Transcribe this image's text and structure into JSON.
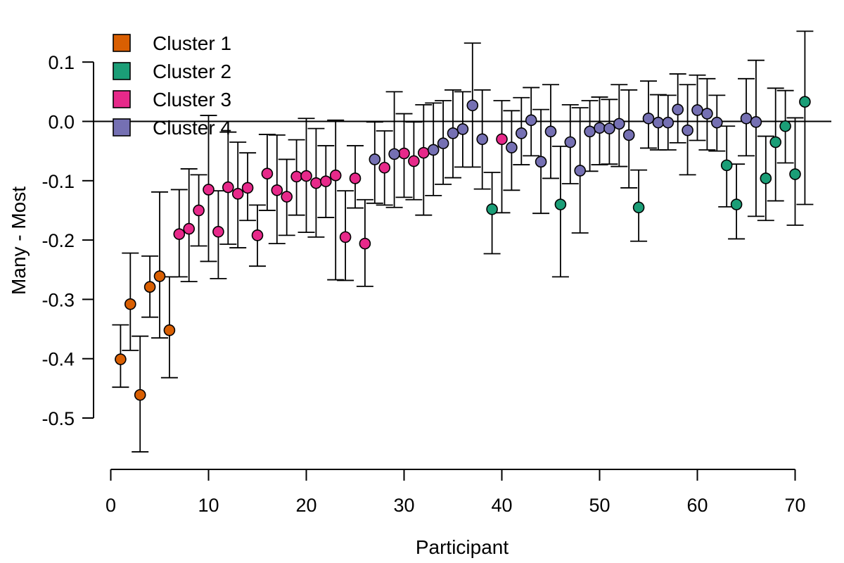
{
  "chart_data": {
    "type": "scatter",
    "title": "",
    "xlabel": "Participant",
    "ylabel": "Many - Most",
    "xlim": [
      0,
      70
    ],
    "ylim": [
      -0.5,
      0.1
    ],
    "x_ticks": [
      "0",
      "10",
      "20",
      "30",
      "40",
      "50",
      "60",
      "70"
    ],
    "y_ticks": [
      "0.1",
      "0.0",
      "-0.1",
      "-0.2",
      "-0.3",
      "-0.4",
      "-0.5"
    ],
    "reference_line_y": 0,
    "grid": false,
    "legend_position": "top-left",
    "error_bars": true,
    "series": [
      {
        "name": "Cluster 1",
        "color": "#D95F02",
        "points": [
          {
            "x": 1,
            "y": -0.401,
            "lo": -0.448,
            "hi": -0.343
          },
          {
            "x": 2,
            "y": -0.308,
            "lo": -0.386,
            "hi": -0.222
          },
          {
            "x": 3,
            "y": -0.461,
            "lo": -0.557,
            "hi": -0.362
          },
          {
            "x": 4,
            "y": -0.279,
            "lo": -0.33,
            "hi": -0.227
          },
          {
            "x": 5,
            "y": -0.261,
            "lo": -0.365,
            "hi": -0.119
          },
          {
            "x": 6,
            "y": -0.352,
            "lo": -0.432,
            "hi": -0.262
          }
        ]
      },
      {
        "name": "Cluster 2",
        "color": "#1B9E77",
        "points": [
          {
            "x": 39,
            "y": -0.148,
            "lo": -0.223,
            "hi": -0.086
          },
          {
            "x": 46,
            "y": -0.14,
            "lo": -0.262,
            "hi": -0.042
          },
          {
            "x": 54,
            "y": -0.145,
            "lo": -0.202,
            "hi": -0.082
          },
          {
            "x": 63,
            "y": -0.074,
            "lo": -0.144,
            "hi": -0.008
          },
          {
            "x": 64,
            "y": -0.14,
            "lo": -0.198,
            "hi": -0.072
          },
          {
            "x": 67,
            "y": -0.096,
            "lo": -0.167,
            "hi": -0.025
          },
          {
            "x": 68,
            "y": -0.035,
            "lo": -0.134,
            "hi": 0.056
          },
          {
            "x": 69,
            "y": -0.008,
            "lo": -0.07,
            "hi": 0.052
          },
          {
            "x": 70,
            "y": -0.089,
            "lo": -0.175,
            "hi": 0.006
          },
          {
            "x": 71,
            "y": 0.033,
            "lo": -0.14,
            "hi": 0.152
          }
        ]
      },
      {
        "name": "Cluster 3",
        "color": "#E7298A",
        "points": [
          {
            "x": 7,
            "y": -0.19,
            "lo": -0.262,
            "hi": -0.115
          },
          {
            "x": 8,
            "y": -0.181,
            "lo": -0.27,
            "hi": -0.08
          },
          {
            "x": 9,
            "y": -0.15,
            "lo": -0.21,
            "hi": -0.09
          },
          {
            "x": 10,
            "y": -0.115,
            "lo": -0.236,
            "hi": 0.01
          },
          {
            "x": 11,
            "y": -0.186,
            "lo": -0.265,
            "hi": -0.117
          },
          {
            "x": 12,
            "y": -0.111,
            "lo": -0.207,
            "hi": -0.018
          },
          {
            "x": 13,
            "y": -0.122,
            "lo": -0.213,
            "hi": -0.035
          },
          {
            "x": 14,
            "y": -0.112,
            "lo": -0.167,
            "hi": -0.053
          },
          {
            "x": 15,
            "y": -0.192,
            "lo": -0.244,
            "hi": -0.141
          },
          {
            "x": 16,
            "y": -0.088,
            "lo": -0.15,
            "hi": -0.022
          },
          {
            "x": 17,
            "y": -0.116,
            "lo": -0.206,
            "hi": -0.023
          },
          {
            "x": 18,
            "y": -0.127,
            "lo": -0.192,
            "hi": -0.064
          },
          {
            "x": 19,
            "y": -0.093,
            "lo": -0.158,
            "hi": -0.031
          },
          {
            "x": 20,
            "y": -0.092,
            "lo": -0.187,
            "hi": 0.005
          },
          {
            "x": 21,
            "y": -0.104,
            "lo": -0.195,
            "hi": -0.012
          },
          {
            "x": 22,
            "y": -0.101,
            "lo": -0.162,
            "hi": -0.041
          },
          {
            "x": 23,
            "y": -0.091,
            "lo": -0.267,
            "hi": 0.002
          },
          {
            "x": 24,
            "y": -0.195,
            "lo": -0.268,
            "hi": -0.117
          },
          {
            "x": 25,
            "y": -0.096,
            "lo": -0.146,
            "hi": -0.041
          },
          {
            "x": 26,
            "y": -0.206,
            "lo": -0.278,
            "hi": -0.132
          },
          {
            "x": 28,
            "y": -0.078,
            "lo": -0.141,
            "hi": -0.016
          },
          {
            "x": 30,
            "y": -0.054,
            "lo": -0.128,
            "hi": 0.013
          },
          {
            "x": 31,
            "y": -0.067,
            "lo": -0.132,
            "hi": -0.001
          },
          {
            "x": 32,
            "y": -0.053,
            "lo": -0.158,
            "hi": 0.028
          },
          {
            "x": 40,
            "y": -0.03,
            "lo": -0.154,
            "hi": 0.035
          }
        ]
      },
      {
        "name": "Cluster 4",
        "color": "#7570B3",
        "points": [
          {
            "x": 27,
            "y": -0.064,
            "lo": -0.138,
            "hi": -0.001
          },
          {
            "x": 29,
            "y": -0.055,
            "lo": -0.145,
            "hi": 0.05
          },
          {
            "x": 33,
            "y": -0.048,
            "lo": -0.125,
            "hi": 0.031
          },
          {
            "x": 34,
            "y": -0.037,
            "lo": -0.106,
            "hi": 0.035
          },
          {
            "x": 35,
            "y": -0.02,
            "lo": -0.095,
            "hi": 0.053
          },
          {
            "x": 36,
            "y": -0.013,
            "lo": -0.077,
            "hi": 0.05
          },
          {
            "x": 37,
            "y": 0.027,
            "lo": -0.077,
            "hi": 0.132
          },
          {
            "x": 38,
            "y": -0.03,
            "lo": -0.114,
            "hi": 0.053
          },
          {
            "x": 41,
            "y": -0.044,
            "lo": -0.116,
            "hi": 0.018
          },
          {
            "x": 42,
            "y": -0.02,
            "lo": -0.073,
            "hi": 0.04
          },
          {
            "x": 43,
            "y": 0.002,
            "lo": -0.058,
            "hi": 0.057
          },
          {
            "x": 44,
            "y": -0.068,
            "lo": -0.155,
            "hi": 0.02
          },
          {
            "x": 45,
            "y": -0.017,
            "lo": -0.096,
            "hi": 0.062
          },
          {
            "x": 47,
            "y": -0.035,
            "lo": -0.105,
            "hi": 0.028
          },
          {
            "x": 48,
            "y": -0.083,
            "lo": -0.188,
            "hi": 0.023
          },
          {
            "x": 49,
            "y": -0.017,
            "lo": -0.084,
            "hi": 0.035
          },
          {
            "x": 50,
            "y": -0.011,
            "lo": -0.073,
            "hi": 0.041
          },
          {
            "x": 51,
            "y": -0.012,
            "lo": -0.072,
            "hi": 0.037
          },
          {
            "x": 52,
            "y": -0.004,
            "lo": -0.076,
            "hi": 0.062
          },
          {
            "x": 53,
            "y": -0.023,
            "lo": -0.112,
            "hi": 0.053
          },
          {
            "x": 55,
            "y": 0.005,
            "lo": -0.045,
            "hi": 0.068
          },
          {
            "x": 56,
            "y": -0.002,
            "lo": -0.048,
            "hi": 0.045
          },
          {
            "x": 57,
            "y": -0.002,
            "lo": -0.048,
            "hi": 0.044
          },
          {
            "x": 58,
            "y": 0.02,
            "lo": -0.036,
            "hi": 0.08
          },
          {
            "x": 59,
            "y": -0.015,
            "lo": -0.09,
            "hi": 0.062
          },
          {
            "x": 60,
            "y": 0.019,
            "lo": -0.032,
            "hi": 0.078
          },
          {
            "x": 61,
            "y": 0.013,
            "lo": -0.048,
            "hi": 0.072
          },
          {
            "x": 62,
            "y": -0.002,
            "lo": -0.05,
            "hi": 0.044
          },
          {
            "x": 65,
            "y": 0.005,
            "lo": -0.058,
            "hi": 0.072
          },
          {
            "x": 66,
            "y": -0.001,
            "lo": -0.16,
            "hi": 0.103
          }
        ]
      }
    ]
  }
}
